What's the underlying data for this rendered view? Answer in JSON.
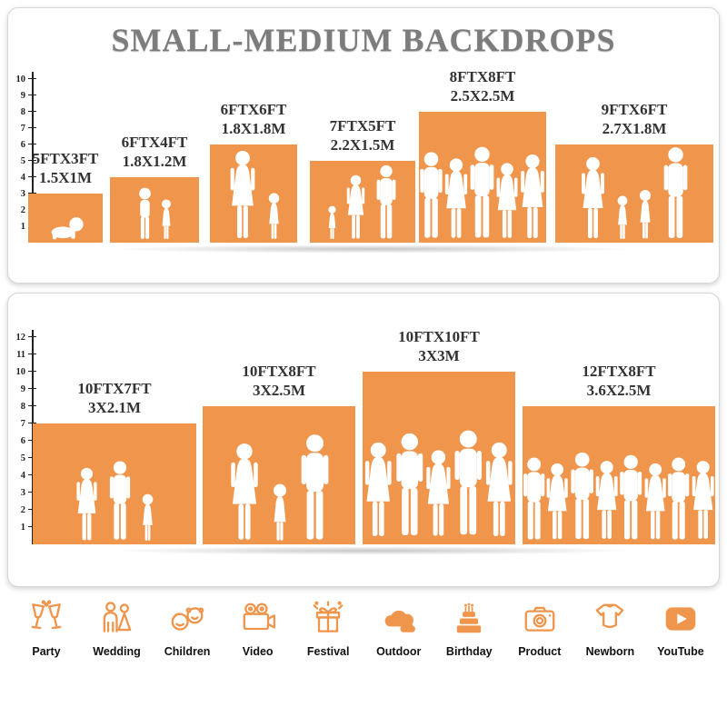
{
  "title": "SMALL-MEDIUM BACKDROPS",
  "colors": {
    "accent": "#EF954C",
    "title_gray": "#7C7C7C",
    "label_dark": "#333333"
  },
  "panels": [
    {
      "name": "backdrops-row-1",
      "ruler_max": 10,
      "items": [
        {
          "size_ft": "5FTX3FT",
          "size_m": "1.5X1M",
          "w_ft": 5,
          "h_ft": 3,
          "figures": [
            {
              "type": "baby",
              "h": 0.52
            }
          ]
        },
        {
          "size_ft": "6FTX4FT",
          "size_m": "1.8X1.2M",
          "w_ft": 6,
          "h_ft": 4,
          "figures": [
            {
              "type": "boy",
              "h": 0.8
            },
            {
              "type": "girl",
              "h": 0.62
            }
          ]
        },
        {
          "size_ft": "6FTX6FT",
          "size_m": "1.8X1.8M",
          "w_ft": 6,
          "h_ft": 6,
          "figures": [
            {
              "type": "woman",
              "h": 0.92
            },
            {
              "type": "girl",
              "h": 0.48
            }
          ]
        },
        {
          "size_ft": "7FTX5FT",
          "size_m": "2.2X1.5M",
          "w_ft": 7,
          "h_ft": 5,
          "figures": [
            {
              "type": "girl",
              "h": 0.42
            },
            {
              "type": "woman",
              "h": 0.8
            },
            {
              "type": "man",
              "h": 0.92
            }
          ]
        },
        {
          "size_ft": "8FTX8FT",
          "size_m": "2.5X2.5M",
          "w_ft": 8,
          "h_ft": 8,
          "figures": [
            {
              "type": "man",
              "h": 0.68
            },
            {
              "type": "woman",
              "h": 0.63
            },
            {
              "type": "man",
              "h": 0.72
            },
            {
              "type": "woman",
              "h": 0.6
            },
            {
              "type": "woman",
              "h": 0.66
            }
          ]
        },
        {
          "size_ft": "9FTX6FT",
          "size_m": "2.7X1.8M",
          "w_ft": 9,
          "h_ft": 6,
          "figures": [
            {
              "type": "woman",
              "h": 0.85
            },
            {
              "type": "girl",
              "h": 0.45
            },
            {
              "type": "girl",
              "h": 0.52
            },
            {
              "type": "man",
              "h": 0.95
            }
          ]
        }
      ]
    },
    {
      "name": "backdrops-row-2",
      "ruler_max": 12,
      "items": [
        {
          "size_ft": "10FTX7FT",
          "size_m": "3X2.1M",
          "w_ft": 10,
          "h_ft": 7,
          "figures": [
            {
              "type": "woman",
              "h": 0.62
            },
            {
              "type": "man",
              "h": 0.68
            },
            {
              "type": "girl",
              "h": 0.4
            }
          ]
        },
        {
          "size_ft": "10FTX8FT",
          "size_m": "3X2.5M",
          "w_ft": 10,
          "h_ft": 8,
          "figures": [
            {
              "type": "woman",
              "h": 0.72
            },
            {
              "type": "girl",
              "h": 0.42
            },
            {
              "type": "man",
              "h": 0.78
            }
          ]
        },
        {
          "size_ft": "10FTX10FT",
          "size_m": "3X3M",
          "w_ft": 10,
          "h_ft": 10,
          "figures": [
            {
              "type": "woman",
              "h": 0.6
            },
            {
              "type": "man",
              "h": 0.66
            },
            {
              "type": "woman",
              "h": 0.56
            },
            {
              "type": "man",
              "h": 0.68
            },
            {
              "type": "woman",
              "h": 0.6
            }
          ]
        },
        {
          "size_ft": "12FTX8FT",
          "size_m": "3.6X2.5M",
          "w_ft": 12,
          "h_ft": 8,
          "figures": [
            {
              "type": "man",
              "h": 0.62
            },
            {
              "type": "woman",
              "h": 0.58
            },
            {
              "type": "man",
              "h": 0.66
            },
            {
              "type": "woman",
              "h": 0.6
            },
            {
              "type": "man",
              "h": 0.64
            },
            {
              "type": "woman",
              "h": 0.58
            },
            {
              "type": "man",
              "h": 0.62
            },
            {
              "type": "woman",
              "h": 0.6
            }
          ]
        }
      ]
    }
  ],
  "categories": [
    {
      "label": "Party",
      "icon": "party-icon"
    },
    {
      "label": "Wedding",
      "icon": "wedding-icon"
    },
    {
      "label": "Children",
      "icon": "children-icon"
    },
    {
      "label": "Video",
      "icon": "video-icon"
    },
    {
      "label": "Festival",
      "icon": "festival-icon"
    },
    {
      "label": "Outdoor",
      "icon": "outdoor-icon"
    },
    {
      "label": "Birthday",
      "icon": "birthday-icon"
    },
    {
      "label": "Product",
      "icon": "product-icon"
    },
    {
      "label": "Newborn",
      "icon": "newborn-icon"
    },
    {
      "label": "YouTube",
      "icon": "youtube-icon"
    }
  ]
}
